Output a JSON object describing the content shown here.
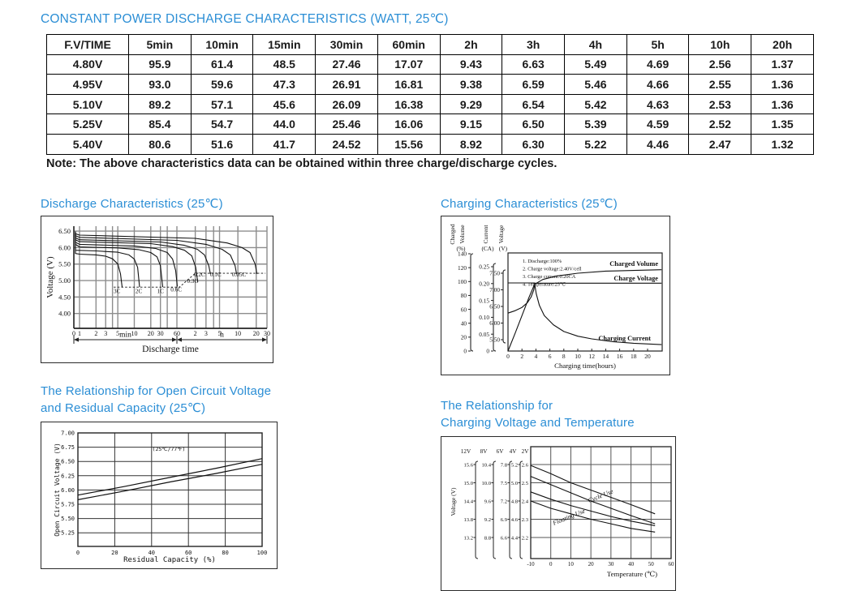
{
  "page": {
    "accent_color": "#2b8ed5",
    "title": "CONSTANT POWER DISCHARGE CHARACTERISTICS (WATT, 25℃)",
    "note": "Note: The above characteristics data can be obtained within three charge/discharge cycles."
  },
  "table": {
    "headers": [
      "F.V/TIME",
      "5min",
      "10min",
      "15min",
      "30min",
      "60min",
      "2h",
      "3h",
      "4h",
      "5h",
      "10h",
      "20h"
    ],
    "rows": [
      [
        "4.80V",
        "95.9",
        "61.4",
        "48.5",
        "27.46",
        "17.07",
        "9.43",
        "6.63",
        "5.49",
        "4.69",
        "2.56",
        "1.37"
      ],
      [
        "4.95V",
        "93.0",
        "59.6",
        "47.3",
        "26.91",
        "16.81",
        "9.38",
        "6.59",
        "5.46",
        "4.66",
        "2.55",
        "1.36"
      ],
      [
        "5.10V",
        "89.2",
        "57.1",
        "45.6",
        "26.09",
        "16.38",
        "9.29",
        "6.54",
        "5.42",
        "4.63",
        "2.53",
        "1.36"
      ],
      [
        "5.25V",
        "85.4",
        "54.7",
        "44.0",
        "25.46",
        "16.06",
        "9.15",
        "6.50",
        "5.39",
        "4.59",
        "2.52",
        "1.35"
      ],
      [
        "5.40V",
        "80.6",
        "51.6",
        "41.7",
        "24.52",
        "15.56",
        "8.92",
        "6.30",
        "5.22",
        "4.46",
        "2.47",
        "1.32"
      ]
    ]
  },
  "chart_data": [
    {
      "type": "line",
      "title": "Discharge Characteristics (25℃)",
      "heading_lines": [
        "Discharge Characteristics (25℃)"
      ],
      "ylabel": "Voltage (V)",
      "xlabel": "Discharge time",
      "x_unit_left": "min",
      "x_unit_right": "h",
      "y_ticks": [
        "6.50",
        "6.00",
        "5.50",
        "5.00",
        "4.50",
        "4.00"
      ],
      "x_ticks_min": [
        1,
        2,
        3,
        5,
        10,
        20,
        30,
        60
      ],
      "x_tick_zero": "0",
      "x_ticks_h": [
        2,
        3,
        5,
        10,
        20,
        30
      ],
      "ylim": [
        3.55,
        6.65
      ],
      "series": [
        {
          "name": "3C",
          "points": [
            [
              0.09,
              6.42
            ],
            [
              0.2,
              5.95
            ],
            [
              0.5,
              5.82
            ],
            [
              1,
              5.8
            ],
            [
              2,
              5.78
            ],
            [
              3,
              5.74
            ],
            [
              4,
              5.66
            ],
            [
              5,
              5.5
            ],
            [
              5.6,
              5.2
            ],
            [
              6,
              4.8
            ]
          ]
        },
        {
          "name": "2C",
          "points": [
            [
              0.09,
              6.43
            ],
            [
              0.25,
              6.02
            ],
            [
              0.6,
              5.92
            ],
            [
              2,
              5.9
            ],
            [
              5,
              5.86
            ],
            [
              8,
              5.78
            ],
            [
              10,
              5.65
            ],
            [
              11.5,
              5.4
            ],
            [
              12.5,
              4.8
            ]
          ]
        },
        {
          "name": "1C",
          "points": [
            [
              0.09,
              6.44
            ],
            [
              0.3,
              6.1
            ],
            [
              1,
              6.02
            ],
            [
              5,
              5.99
            ],
            [
              12,
              5.94
            ],
            [
              20,
              5.85
            ],
            [
              26,
              5.72
            ],
            [
              30,
              5.45
            ],
            [
              33,
              4.8
            ]
          ]
        },
        {
          "name": "0.6C",
          "points": [
            [
              0.09,
              6.45
            ],
            [
              0.3,
              6.16
            ],
            [
              1,
              6.1
            ],
            [
              10,
              6.05
            ],
            [
              25,
              5.97
            ],
            [
              40,
              5.85
            ],
            [
              50,
              5.65
            ],
            [
              57,
              5.3
            ],
            [
              61,
              4.82
            ]
          ]
        },
        {
          "name": "0.3C",
          "points": [
            [
              0.09,
              6.46
            ],
            [
              0.3,
              6.24
            ],
            [
              1,
              6.18
            ],
            [
              20,
              6.12
            ],
            [
              50,
              6.03
            ],
            [
              80,
              5.92
            ],
            [
              105,
              5.75
            ],
            [
              122,
              5.4
            ],
            [
              132,
              4.95
            ]
          ]
        },
        {
          "name": "0.2C",
          "points": [
            [
              0.09,
              6.47
            ],
            [
              0.3,
              6.3
            ],
            [
              1,
              6.24
            ],
            [
              30,
              6.17
            ],
            [
              80,
              6.07
            ],
            [
              130,
              5.95
            ],
            [
              170,
              5.78
            ],
            [
              200,
              5.45
            ],
            [
              213,
              5.2
            ]
          ]
        },
        {
          "name": "0.1C",
          "points": [
            [
              0.09,
              6.48
            ],
            [
              0.3,
              6.36
            ],
            [
              1,
              6.31
            ],
            [
              60,
              6.22
            ],
            [
              180,
              6.1
            ],
            [
              330,
              5.95
            ],
            [
              450,
              5.78
            ],
            [
              540,
              5.45
            ],
            [
              570,
              5.2
            ]
          ]
        },
        {
          "name": "0.05C",
          "points": [
            [
              0.09,
              6.49
            ],
            [
              0.3,
              6.42
            ],
            [
              1,
              6.38
            ],
            [
              120,
              6.28
            ],
            [
              400,
              6.14
            ],
            [
              700,
              6.0
            ],
            [
              950,
              5.85
            ],
            [
              1150,
              5.5
            ],
            [
              1230,
              5.2
            ]
          ]
        }
      ],
      "series_labels": [
        {
          "text": "3C",
          "t": 4.2,
          "v": 4.62
        },
        {
          "text": "2C",
          "t": 10.5,
          "v": 4.62
        },
        {
          "text": "1C",
          "t": 26,
          "v": 4.62
        },
        {
          "text": "0.6C",
          "t": 46,
          "v": 4.67
        },
        {
          "text": "0.3C",
          "t": 88,
          "v": 4.93
        },
        {
          "text": "0.2C",
          "t": 114,
          "v": 5.12
        },
        {
          "text": "0.1C",
          "t": 210,
          "v": 5.12
        },
        {
          "text": "0.05C",
          "t": 480,
          "v": 5.12
        }
      ],
      "cutoff_line": [
        [
          4.2,
          4.8
        ],
        [
          66,
          4.8
        ],
        [
          120,
          5.22
        ],
        [
          1700,
          5.22
        ]
      ]
    },
    {
      "type": "line",
      "title": "Charging Characteristics (25℃)",
      "heading_lines": [
        "Charging Characteristics (25℃)"
      ],
      "xlabel": "Charging time(hours)",
      "x_ticks": [
        0,
        2,
        4,
        6,
        8,
        10,
        12,
        14,
        16,
        18,
        20
      ],
      "axes": [
        {
          "name_lines": [
            "Charged",
            "Volume"
          ],
          "unit": "(%)",
          "ticks": [
            "140",
            "120",
            "100",
            "80",
            "60",
            "40",
            "20",
            "0"
          ]
        },
        {
          "name_lines": [
            "Current"
          ],
          "unit": "(CA)",
          "ticks": [
            "0.25",
            "0.20",
            "0.15",
            "0.10",
            "0.05",
            "0"
          ]
        },
        {
          "name_lines": [
            "Voltage"
          ],
          "unit": "(V)",
          "ticks": [
            "7.50",
            "7.00",
            "6.50",
            "6.00",
            "5.50"
          ]
        }
      ],
      "notes": [
        "1. Discharge:100%",
        "2. Charge voltage:2.40V/cell",
        "3. Charge current:0.20CA",
        "4. Temperature:25℃"
      ],
      "series": [
        {
          "name": "Charged Volume",
          "axis": "volume",
          "points": [
            [
              0,
              0
            ],
            [
              1,
              25
            ],
            [
              2,
              51
            ],
            [
              3,
              77
            ],
            [
              3.8,
              96
            ],
            [
              5,
              103
            ],
            [
              7,
              108
            ],
            [
              10,
              112
            ],
            [
              14,
              115
            ],
            [
              18,
              116
            ],
            [
              22,
              117
            ]
          ]
        },
        {
          "name": "Charge Voltage",
          "axis": "voltage",
          "points": [
            [
              0,
              6.3
            ],
            [
              1,
              6.37
            ],
            [
              2,
              6.47
            ],
            [
              2.8,
              6.62
            ],
            [
              3.3,
              6.78
            ],
            [
              3.7,
              7.0
            ],
            [
              3.85,
              7.2
            ],
            [
              22,
              7.2
            ]
          ]
        },
        {
          "name": "Charging Current",
          "axis": "current",
          "points": [
            [
              0,
              0.202
            ],
            [
              3.8,
              0.202
            ],
            [
              4.05,
              0.17
            ],
            [
              4.5,
              0.135
            ],
            [
              5.2,
              0.105
            ],
            [
              6.5,
              0.078
            ],
            [
              8,
              0.058
            ],
            [
              10,
              0.044
            ],
            [
              12,
              0.036
            ],
            [
              15,
              0.028
            ],
            [
              18,
              0.023
            ],
            [
              22,
              0.019
            ]
          ]
        }
      ]
    },
    {
      "type": "line",
      "title": "The Relationship for Open Circuit Voltage and Residual Capacity (25℃)",
      "heading_lines": [
        "The Relationship for Open Circuit Voltage",
        "and Residual Capacity (25℃)"
      ],
      "annotation": "(25℃/77℉)",
      "ylabel": "Open Circuit Voltage (V)",
      "xlabel": "Residual Capacity (%)",
      "y_ticks": [
        "7.00",
        "6.75",
        "6.50",
        "6.25",
        "6.00",
        "5.75",
        "5.50",
        "5.25"
      ],
      "x_ticks": [
        0,
        20,
        40,
        60,
        80,
        100
      ],
      "series": [
        {
          "name": "upper",
          "points": [
            [
              0,
              5.91
            ],
            [
              25,
              6.06
            ],
            [
              50,
              6.22
            ],
            [
              75,
              6.38
            ],
            [
              100,
              6.55
            ]
          ]
        },
        {
          "name": "lower",
          "points": [
            [
              0,
              5.83
            ],
            [
              25,
              5.98
            ],
            [
              50,
              6.14
            ],
            [
              75,
              6.29
            ],
            [
              100,
              6.45
            ]
          ]
        }
      ]
    },
    {
      "type": "line",
      "title": "The Relationship for Charging Voltage and Temperature",
      "heading_lines": [
        "The Relationship for",
        "Charging Voltage and Temperature"
      ],
      "ylabel": "Voltage (V)",
      "xlabel": "Temperature (℃)",
      "x_ticks": [
        -10,
        0,
        10,
        20,
        30,
        40,
        50,
        60
      ],
      "scales": [
        {
          "name": "12V",
          "ticks": [
            "15.6",
            "15.0",
            "14.4",
            "13.8",
            "13.2"
          ]
        },
        {
          "name": "8V",
          "ticks": [
            "10.4",
            "10.0",
            "9.6",
            "9.2",
            "8.8"
          ]
        },
        {
          "name": "6V",
          "ticks": [
            "7.8",
            "7.5",
            "7.2",
            "6.9",
            "6.6"
          ]
        },
        {
          "name": "4V",
          "ticks": [
            "5.2",
            "5.0",
            "4.8",
            "4.6",
            "4.4"
          ]
        },
        {
          "name": "2V",
          "ticks": [
            "2.6",
            "2.5",
            "2.4",
            "2.3",
            "2.2"
          ]
        }
      ],
      "bands": [
        {
          "name": "Cycle Use",
          "upper": [
            [
              -10,
              2.595
            ],
            [
              0,
              2.55
            ],
            [
              10,
              2.5
            ],
            [
              20,
              2.46
            ],
            [
              30,
              2.42
            ],
            [
              40,
              2.38
            ],
            [
              52,
              2.33
            ]
          ],
          "lower": [
            [
              -10,
              2.535
            ],
            [
              0,
              2.49
            ],
            [
              10,
              2.445
            ],
            [
              20,
              2.4
            ],
            [
              30,
              2.36
            ],
            [
              40,
              2.32
            ],
            [
              52,
              2.275
            ]
          ]
        },
        {
          "name": "Floating Use",
          "upper": [
            [
              -10,
              2.45
            ],
            [
              0,
              2.41
            ],
            [
              10,
              2.375
            ],
            [
              20,
              2.345
            ],
            [
              30,
              2.315
            ],
            [
              40,
              2.29
            ],
            [
              52,
              2.265
            ]
          ],
          "lower": [
            [
              -10,
              2.4
            ],
            [
              0,
              2.36
            ],
            [
              10,
              2.33
            ],
            [
              20,
              2.3
            ],
            [
              30,
              2.275
            ],
            [
              40,
              2.25
            ],
            [
              52,
              2.23
            ]
          ]
        }
      ]
    }
  ]
}
